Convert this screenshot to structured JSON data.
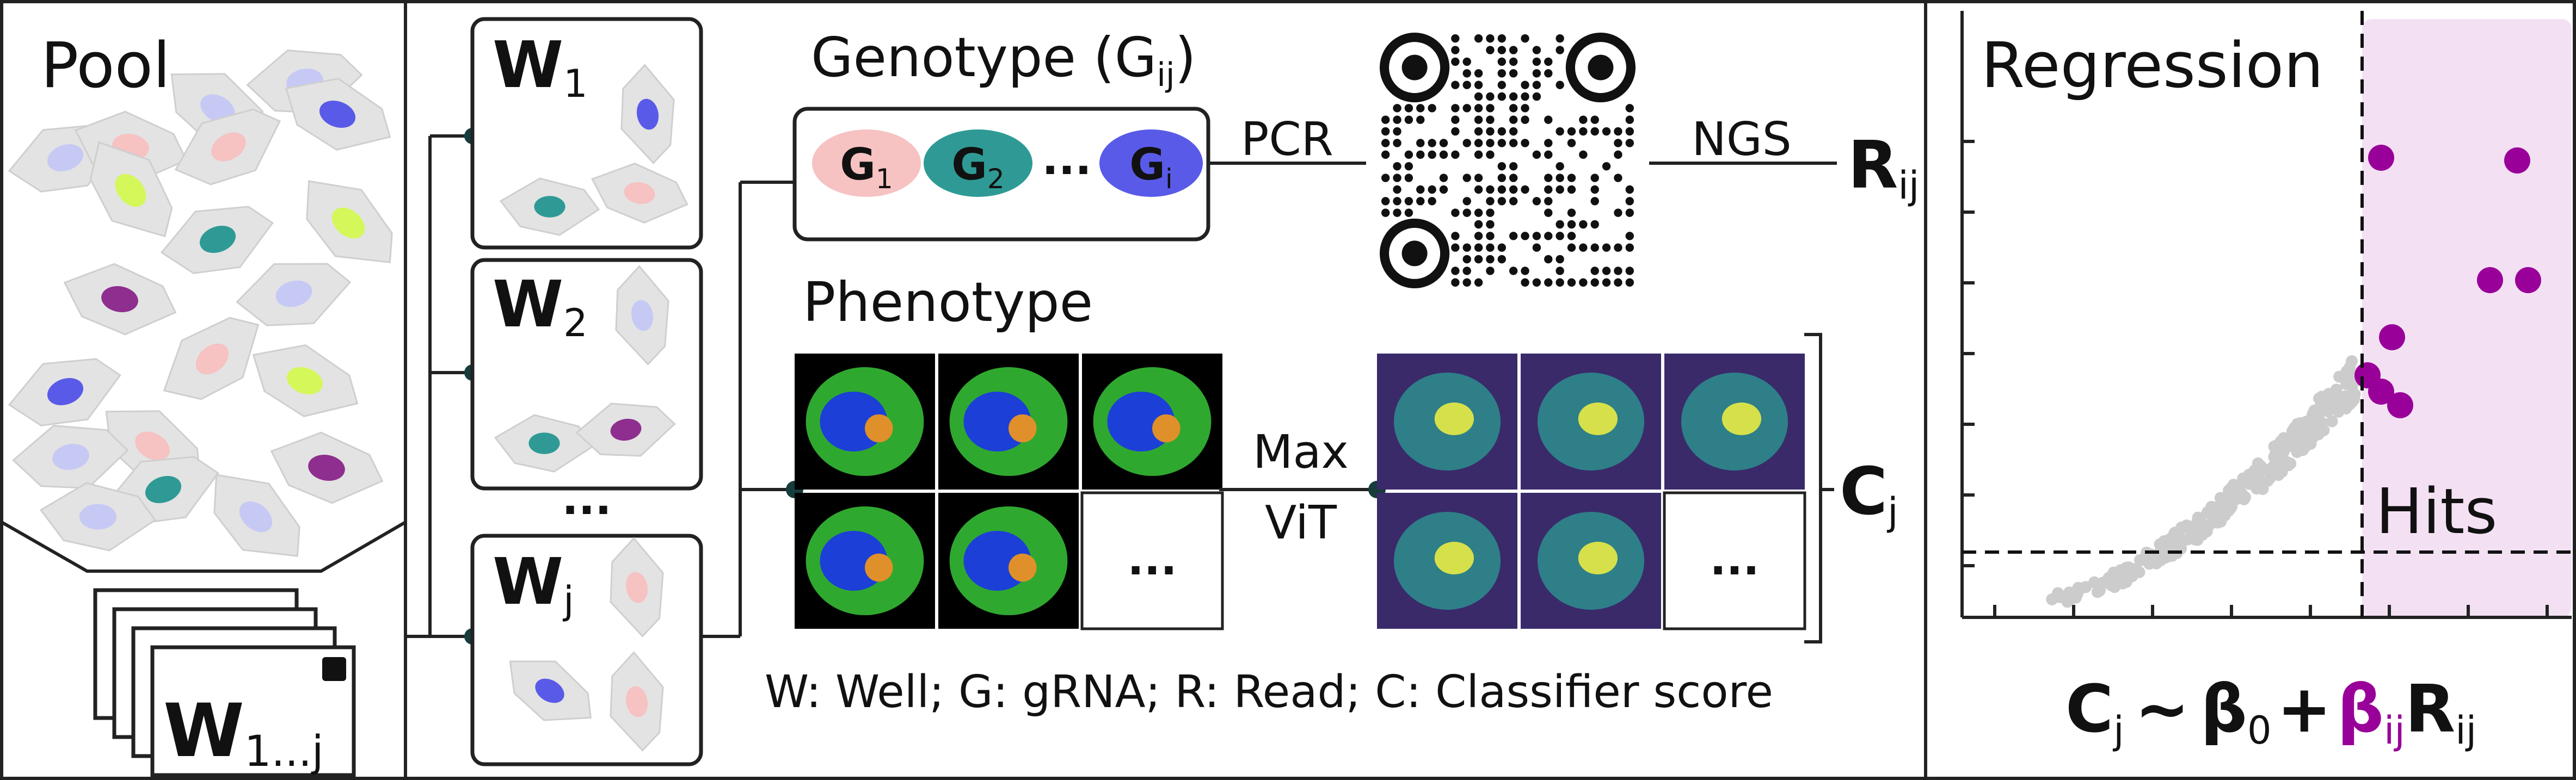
{
  "pool": {
    "title": "Pool",
    "plate_label": "W",
    "plate_sub": "1...j"
  },
  "wells": [
    {
      "label": "W",
      "sub": "1"
    },
    {
      "label": "W",
      "sub": "2"
    },
    {
      "ellipsis": "..."
    },
    {
      "label": "W",
      "sub": "j"
    }
  ],
  "genotype": {
    "title_prefix": "Genotype (G",
    "title_sub": "ij",
    "title_suffix": ")",
    "pills": [
      {
        "label": "G",
        "sub": "1",
        "color": "#f6c2c2"
      },
      {
        "label": "G",
        "sub": "2",
        "color": "#2f9a95"
      },
      {
        "label": "G",
        "sub": "i",
        "color": "#5a5ae8"
      }
    ],
    "pill_ellipsis": "...",
    "pcr_label": "PCR",
    "ngs_label": "NGS",
    "output_label": "R",
    "output_sub": "ij"
  },
  "phenotype": {
    "title": "Phenotype",
    "arrow_top": "Max",
    "arrow_bottom": "ViT",
    "ellipsis": "...",
    "output_label": "C",
    "output_sub": "j"
  },
  "legend_text": "W: Well; G: gRNA; R: Read; C: Classifier score",
  "regression": {
    "title": "Regression",
    "hits_label": "Hits",
    "formula": {
      "c": "C",
      "c_sub": "j",
      "tilde": "~",
      "b0": "β",
      "b0_sub": "0",
      "plus": "+",
      "bij": "β",
      "bij_sub": "ij",
      "r": "R",
      "r_sub": "ij"
    }
  },
  "colors": {
    "cell_body": "#e3e3e3",
    "nucleus_pink": "#f6c2c2",
    "nucleus_teal": "#2f9a95",
    "nucleus_blue": "#5a5ae8",
    "nucleus_lightblue": "#c7c9f5",
    "nucleus_lime": "#d4f85a",
    "nucleus_purple": "#8e2e8e",
    "hits_region": "#f3e1f3",
    "hit_dot": "#990099",
    "nonhit_dot": "#cccccc",
    "micro_green": "#2fa82f",
    "micro_blue": "#1c3fd8",
    "micro_orange": "#e0902a",
    "heat_dark": "#3a2a6a",
    "heat_teal": "#2e7f88",
    "heat_yellow": "#d6e04a"
  }
}
